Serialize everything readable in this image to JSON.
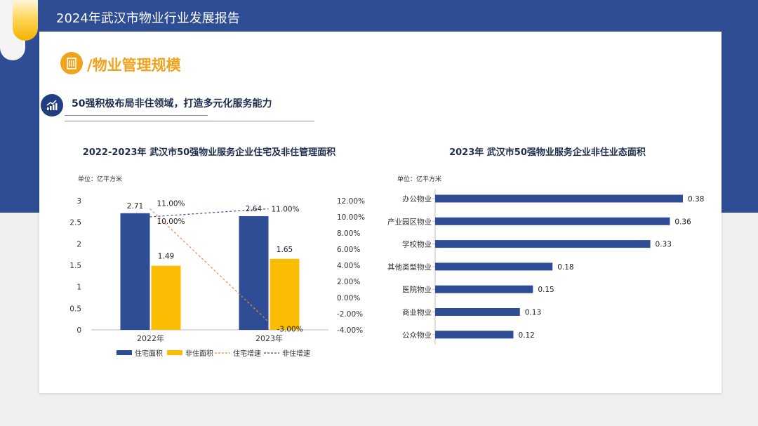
{
  "header": {
    "title": "2024年武汉市物业行业发展报告"
  },
  "section": {
    "title": "/物业管理规模",
    "icon": "building-icon"
  },
  "subsection": {
    "title": "50强积极布局非住领域，打造多元化服务能力",
    "icon": "trend-chart-icon"
  },
  "colors": {
    "band": "#2e4d94",
    "blue_bar": "#2e4d94",
    "yellow_bar": "#fbbd04",
    "orange_line": "#ec8a36",
    "accent": "#f3a21c"
  },
  "chart_data": [
    {
      "type": "bar",
      "title": "2022-2023年 武汉市50强物业服务企业住宅及非住管理面积",
      "unit_label": "单位：亿平方米",
      "categories": [
        "2022年",
        "2023年"
      ],
      "series": [
        {
          "name": "住宅面积",
          "type": "bar",
          "axis": "left",
          "values": [
            2.71,
            1.49
          ],
          "labels": [
            "2.71",
            "1.49"
          ]
        },
        {
          "name": "非住面积",
          "type": "bar",
          "axis": "left",
          "values": [
            2.64,
            1.65
          ],
          "labels": [
            "2.64",
            "1.65"
          ]
        }
      ],
      "lines": [
        {
          "name": "住宅增速",
          "style": "dashed",
          "axis": "right",
          "values": [
            11.0,
            -3.0
          ],
          "labels": [
            "11.00%",
            "-3.00%"
          ]
        },
        {
          "name": "非住增速",
          "style": "dashed",
          "axis": "right",
          "values": [
            10.0,
            11.0
          ],
          "labels": [
            "10.00%",
            "11.00%"
          ]
        }
      ],
      "left_ticks": [
        "3",
        "2.5",
        "2",
        "1.5",
        "1",
        "0.5",
        "0"
      ],
      "right_ticks": [
        "12.00%",
        "10.00%",
        "8.00%",
        "6.00%",
        "4.00%",
        "2.00%",
        "0.00%",
        "-2.00%",
        "-4.00%"
      ],
      "ylim": [
        0,
        3
      ],
      "y2lim": [
        -4,
        12
      ],
      "legend_position": "bottom"
    },
    {
      "type": "bar",
      "orientation": "horizontal",
      "title": "2023年 武汉市50强物业服务企业非住业态面积",
      "unit_label": "单位：亿平方米",
      "categories": [
        "办公物业",
        "产业园区物业",
        "学校物业",
        "其他类型物业",
        "医院物业",
        "商业物业",
        "公众物业"
      ],
      "values": [
        0.38,
        0.36,
        0.33,
        0.18,
        0.15,
        0.13,
        0.12
      ],
      "labels": [
        "0.38",
        "0.36",
        "0.33",
        "0.18",
        "0.15",
        "0.13",
        "0.12"
      ],
      "xlim": [
        0,
        0.38
      ]
    }
  ]
}
